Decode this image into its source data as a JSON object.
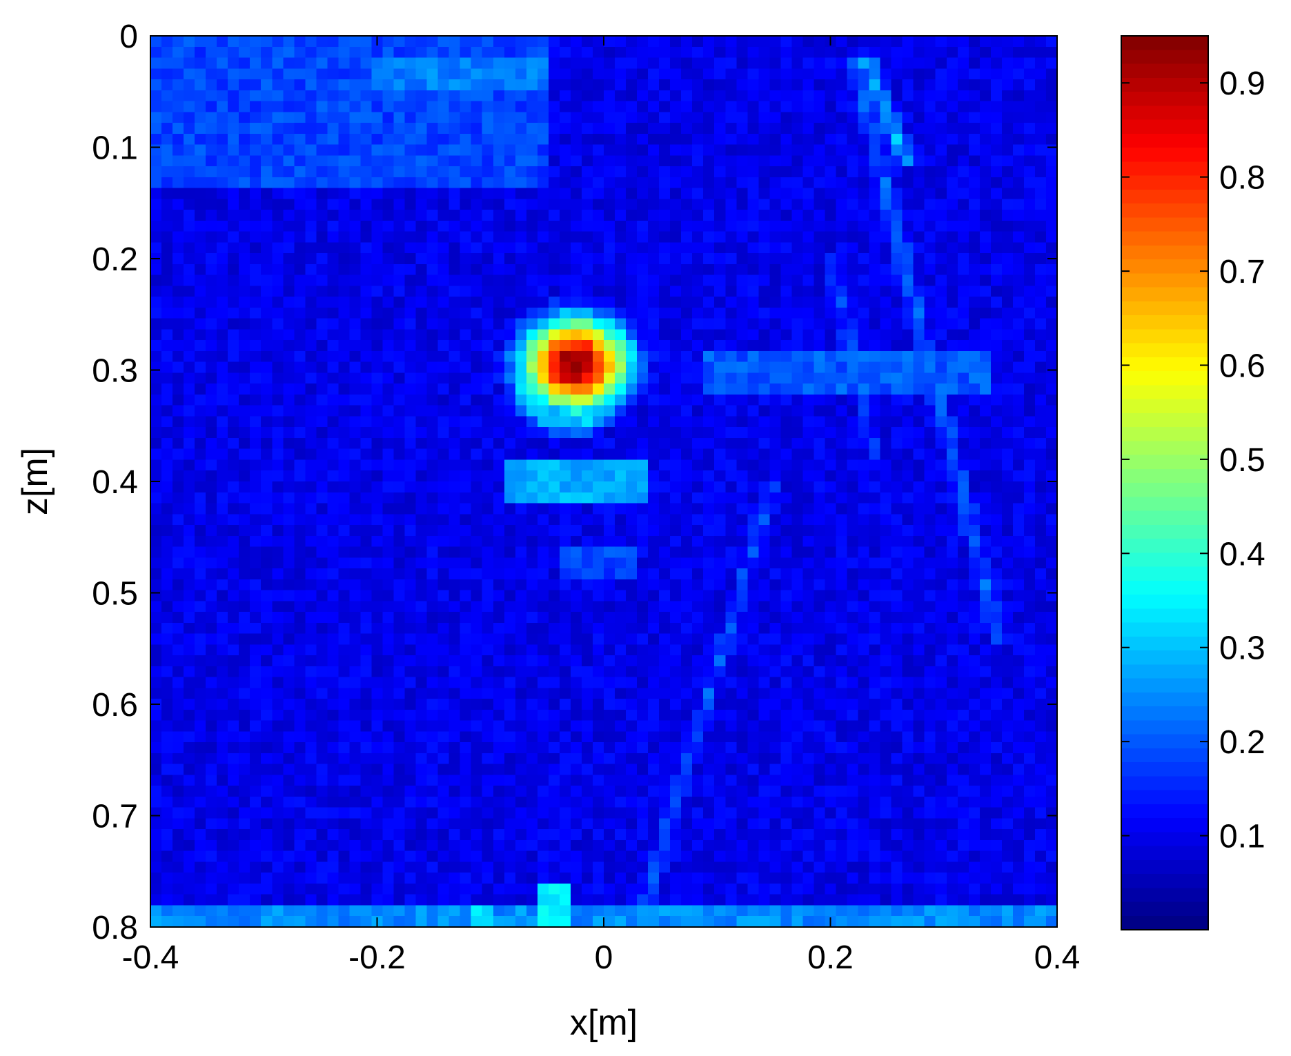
{
  "chart_data": {
    "type": "heatmap",
    "title": "",
    "xlabel": "x[m]",
    "ylabel": "z[m]",
    "xlim": [
      -0.4,
      0.4
    ],
    "ylim": [
      0,
      0.8
    ],
    "y_reversed": true,
    "grid": false,
    "x_ticks": [
      {
        "value": -0.4,
        "label": "-0.4"
      },
      {
        "value": -0.2,
        "label": "-0.2"
      },
      {
        "value": 0,
        "label": "0"
      },
      {
        "value": 0.2,
        "label": "0.2"
      },
      {
        "value": 0.4,
        "label": "0.4"
      }
    ],
    "y_ticks": [
      {
        "value": 0,
        "label": "0"
      },
      {
        "value": 0.1,
        "label": "0.1"
      },
      {
        "value": 0.2,
        "label": "0.2"
      },
      {
        "value": 0.3,
        "label": "0.3"
      },
      {
        "value": 0.4,
        "label": "0.4"
      },
      {
        "value": 0.5,
        "label": "0.5"
      },
      {
        "value": 0.6,
        "label": "0.6"
      },
      {
        "value": 0.7,
        "label": "0.7"
      },
      {
        "value": 0.8,
        "label": "0.8"
      }
    ],
    "colorbar": {
      "colormap": "jet",
      "range": [
        0,
        0.95
      ],
      "ticks": [
        {
          "value": 0.1,
          "label": "0.1"
        },
        {
          "value": 0.2,
          "label": "0.2"
        },
        {
          "value": 0.3,
          "label": "0.3"
        },
        {
          "value": 0.4,
          "label": "0.4"
        },
        {
          "value": 0.5,
          "label": "0.5"
        },
        {
          "value": 0.6,
          "label": "0.6"
        },
        {
          "value": 0.7,
          "label": "0.7"
        },
        {
          "value": 0.8,
          "label": "0.8"
        },
        {
          "value": 0.9,
          "label": "0.9"
        }
      ]
    },
    "background_level": 0.1,
    "features": [
      {
        "type": "peak",
        "x": -0.025,
        "z": 0.295,
        "value": 0.95,
        "sx": 0.034,
        "sz": 0.03
      },
      {
        "type": "ring",
        "x": -0.03,
        "z": 0.31,
        "value": 0.3,
        "sx": 0.055,
        "sz": 0.05
      },
      {
        "type": "band",
        "x0": -0.09,
        "x1": 0.04,
        "z0": 0.38,
        "z1": 0.42,
        "value": 0.28
      },
      {
        "type": "band",
        "x0": -0.04,
        "x1": 0.03,
        "z0": 0.46,
        "z1": 0.49,
        "value": 0.18
      },
      {
        "type": "band",
        "x0": -0.4,
        "x1": -0.05,
        "z0": 0.0,
        "z1": 0.14,
        "value": 0.18
      },
      {
        "type": "band",
        "x0": -0.2,
        "x1": -0.05,
        "z0": 0.02,
        "z1": 0.05,
        "value": 0.24
      },
      {
        "type": "band",
        "x0": 0.09,
        "x1": 0.34,
        "z0": 0.28,
        "z1": 0.32,
        "value": 0.2
      },
      {
        "type": "band",
        "x0": -0.4,
        "x1": 0.4,
        "z0": 0.78,
        "z1": 0.8,
        "value": 0.25
      },
      {
        "type": "band",
        "x0": -0.12,
        "x1": -0.1,
        "z0": 0.78,
        "z1": 0.8,
        "value": 0.33
      },
      {
        "type": "band",
        "x0": -0.06,
        "x1": -0.03,
        "z0": 0.76,
        "z1": 0.8,
        "value": 0.35
      },
      {
        "type": "band",
        "x0": -0.4,
        "x1": -0.398,
        "z0": 0.05,
        "z1": 0.08,
        "value": 0.45
      },
      {
        "type": "band",
        "x0": 0.397,
        "x1": 0.4,
        "z0": 0.38,
        "z1": 0.43,
        "value": 0.35
      },
      {
        "type": "streak",
        "x0": 0.22,
        "z0": 0.02,
        "x1": 0.35,
        "z1": 0.55,
        "value": 0.22
      },
      {
        "type": "streak",
        "x0": 0.23,
        "z0": 0.02,
        "x1": 0.27,
        "z1": 0.12,
        "value": 0.3
      },
      {
        "type": "streak",
        "x0": 0.15,
        "z0": 0.4,
        "x1": 0.03,
        "z1": 0.8,
        "value": 0.2
      },
      {
        "type": "streak",
        "x0": 0.2,
        "z0": 0.2,
        "x1": 0.24,
        "z1": 0.38,
        "value": 0.18
      }
    ]
  }
}
